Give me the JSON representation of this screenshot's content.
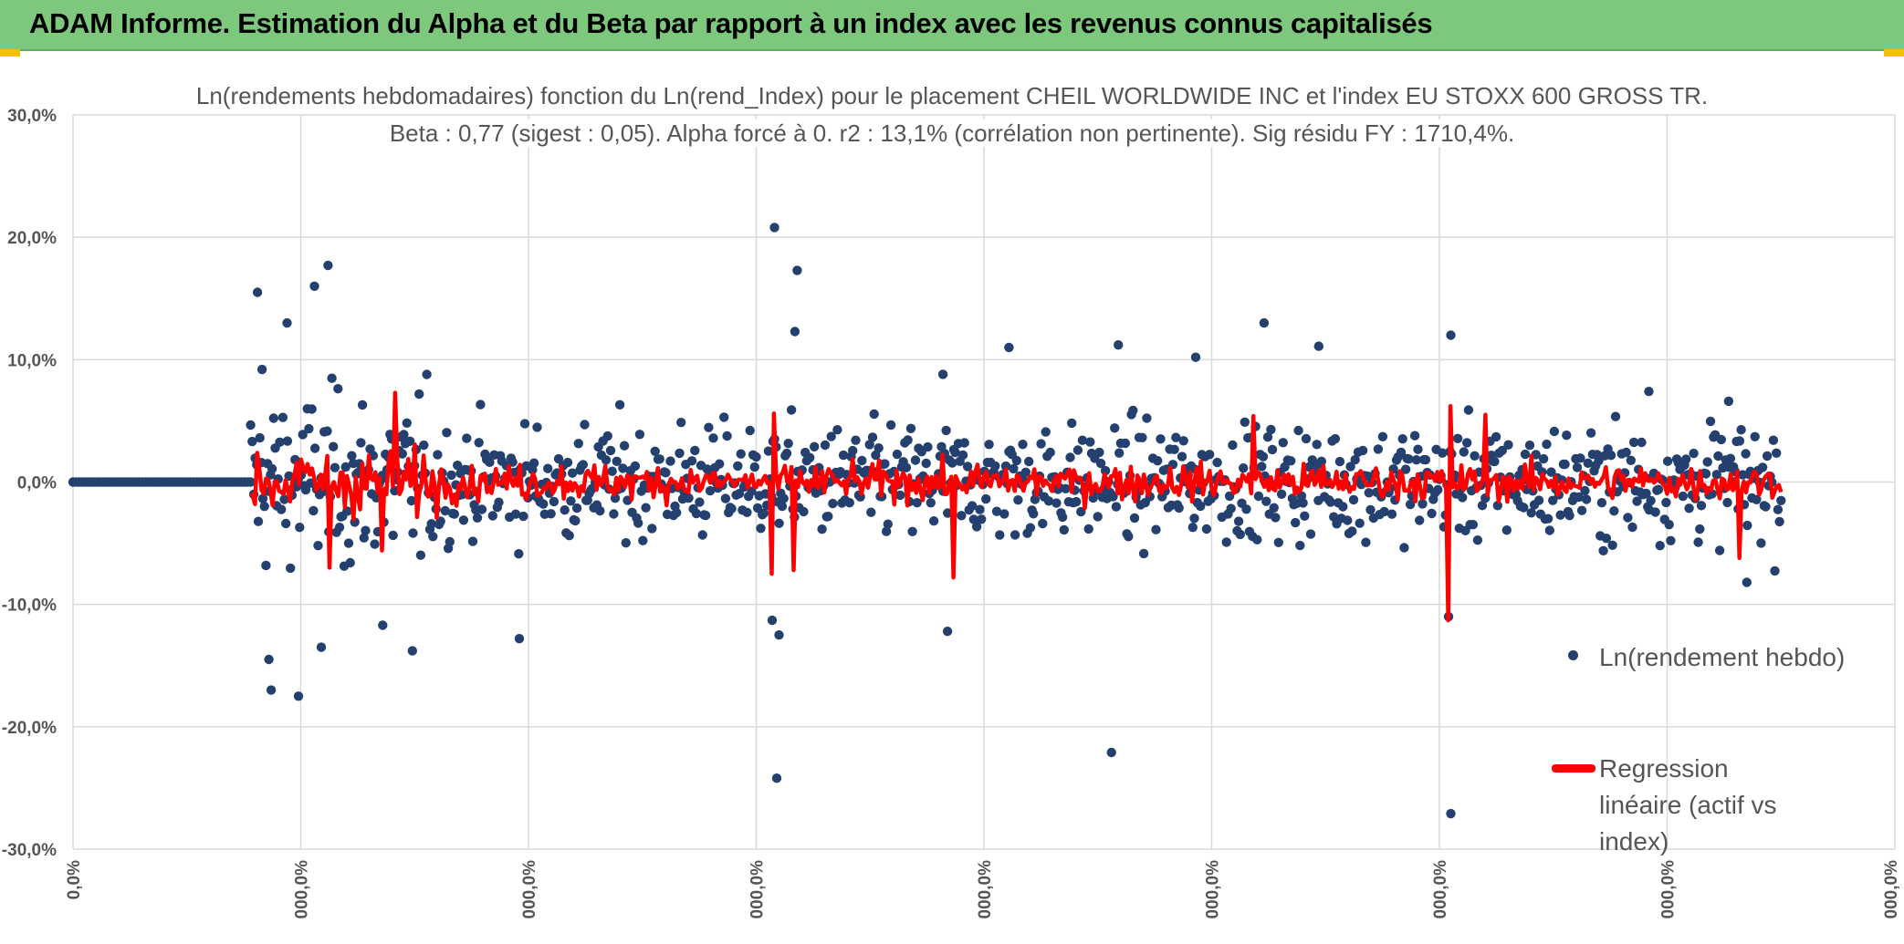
{
  "header": {
    "title": "ADAM Informe. Estimation du Alpha et du Beta par rapport à un index avec les revenus connus capitalisés"
  },
  "colors": {
    "header_bg": "#7ec87e",
    "corner_accent": "#f2c200",
    "scatter": "#24406f",
    "regression": "#ff0000",
    "grid": "#d9d9d9"
  },
  "chart_data": {
    "type": "scatter",
    "title_line1": "Ln(rendements hebdomadaires) fonction du Ln(rend_Index) pour le placement CHEIL WORLDWIDE INC et l'index EU STOXX 600 GROSS TR.",
    "title_line2": "Beta : 0,77 (sigest : 0,05). Alpha forcé à 0. r2 : 13,1% (corrélation non pertinente). Sig résidu FY : 1710,4%.",
    "ylim": [
      -30,
      30
    ],
    "yticks": [
      30,
      20,
      10,
      0,
      -10,
      -20,
      -30
    ],
    "ytick_labels": [
      "30,0%",
      "20,0%",
      "10,0%",
      "0,0%",
      "-10,0%",
      "-20,0%",
      "-30,0%"
    ],
    "xlim": [
      0,
      8
    ],
    "xticks": [
      0,
      1,
      2,
      3,
      4,
      5,
      6,
      7,
      8
    ],
    "xtick_labels": [
      "0,0%",
      "000,0%",
      "000,0%",
      "000,0%",
      "000,0%",
      "000,0%",
      "000,0%",
      "000,0%",
      "000,0%"
    ],
    "legend": [
      {
        "label": "Ln(rendement hebdo)",
        "marker": "dot"
      },
      {
        "label": "Regression linéaire (actif vs index)",
        "marker": "line"
      }
    ],
    "series": [
      {
        "name": "Ln(rendement hebdo)",
        "kind": "points",
        "flat_segment": {
          "x_start": 0.0,
          "x_end": 0.78,
          "count": 60,
          "value": 0
        },
        "noisy_segment": {
          "x_start": 0.78,
          "x_end": 7.5,
          "count": 1000
        },
        "notable_points": [
          [
            0.81,
            15.5
          ],
          [
            0.83,
            9.2
          ],
          [
            0.86,
            -14.5
          ],
          [
            0.87,
            -17.0
          ],
          [
            0.94,
            13.0
          ],
          [
            0.99,
            -17.5
          ],
          [
            1.06,
            16.0
          ],
          [
            1.09,
            -13.5
          ],
          [
            1.12,
            17.7
          ],
          [
            1.36,
            -11.7
          ],
          [
            1.49,
            -13.8
          ],
          [
            1.96,
            -12.8
          ],
          [
            3.07,
            -11.3
          ],
          [
            3.1,
            -12.5
          ],
          [
            3.08,
            20.8
          ],
          [
            3.09,
            -24.2
          ],
          [
            3.18,
            17.3
          ],
          [
            3.17,
            12.3
          ],
          [
            3.84,
            -12.2
          ],
          [
            3.82,
            8.8
          ],
          [
            4.11,
            11.0
          ],
          [
            4.56,
            -22.1
          ],
          [
            4.59,
            11.2
          ],
          [
            4.93,
            10.2
          ],
          [
            5.23,
            13.0
          ],
          [
            5.47,
            11.1
          ],
          [
            6.05,
            12.0
          ],
          [
            6.05,
            -27.1
          ],
          [
            6.04,
            -11.0
          ],
          [
            6.92,
            7.4
          ],
          [
            7.27,
            6.6
          ],
          [
            7.35,
            -8.2
          ]
        ]
      },
      {
        "name": "Regression linéaire (actif vs index)",
        "kind": "line",
        "beta": 0.77,
        "x_start": 0.78,
        "x_end": 7.5,
        "notable_values": [
          [
            0.8,
            4.8
          ],
          [
            0.8,
            -1.8
          ],
          [
            1.13,
            -7.0
          ],
          [
            1.41,
            7.3
          ],
          [
            1.36,
            -5.6
          ],
          [
            3.07,
            -7.5
          ],
          [
            3.08,
            5.6
          ],
          [
            3.16,
            5.2
          ],
          [
            3.16,
            -7.2
          ],
          [
            3.87,
            -7.8
          ],
          [
            5.18,
            5.4
          ],
          [
            6.04,
            -11.3
          ],
          [
            6.05,
            6.2
          ],
          [
            6.2,
            5.5
          ],
          [
            7.32,
            -6.2
          ]
        ]
      }
    ]
  }
}
